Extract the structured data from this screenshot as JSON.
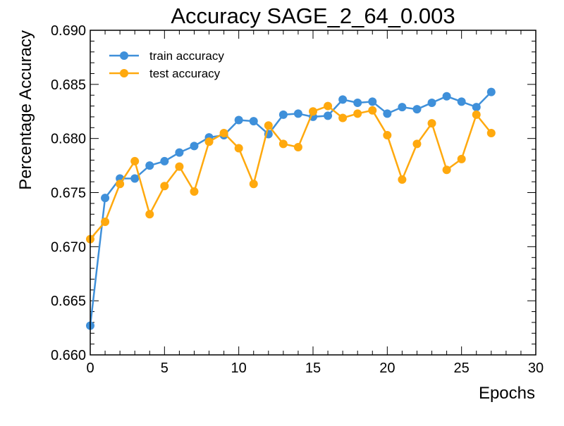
{
  "chart_data": {
    "type": "line",
    "title": "Accuracy SAGE_2_64_0.003",
    "xlabel": "Epochs",
    "ylabel": "Percentage Accuracy",
    "xlim": [
      0,
      30
    ],
    "ylim": [
      0.66,
      0.69
    ],
    "xticks": [
      0,
      5,
      10,
      15,
      20,
      25,
      30
    ],
    "xtick_labels": [
      "0",
      "5",
      "10",
      "15",
      "20",
      "25",
      "30"
    ],
    "yticks": [
      0.66,
      0.665,
      0.67,
      0.675,
      0.68,
      0.685,
      0.69
    ],
    "ytick_labels": [
      "0.660",
      "0.665",
      "0.670",
      "0.675",
      "0.680",
      "0.685",
      "0.690"
    ],
    "grid": false,
    "legend_position": "top-left",
    "x": [
      0,
      1,
      2,
      3,
      4,
      5,
      6,
      7,
      8,
      9,
      10,
      11,
      12,
      13,
      14,
      15,
      16,
      17,
      18,
      19,
      20,
      21,
      22,
      23,
      24,
      25,
      26,
      27
    ],
    "series": [
      {
        "name": "train accuracy",
        "color": "#3f90da",
        "values": [
          0.6627,
          0.6745,
          0.6763,
          0.6763,
          0.6775,
          0.6779,
          0.6787,
          0.6793,
          0.6801,
          0.6803,
          0.6817,
          0.6816,
          0.6804,
          0.6822,
          0.6823,
          0.682,
          0.6821,
          0.6836,
          0.6833,
          0.6834,
          0.6823,
          0.6829,
          0.6827,
          0.6833,
          0.6839,
          0.6834,
          0.6829,
          0.6843
        ]
      },
      {
        "name": "test accuracy",
        "color": "#ffa90e",
        "values": [
          0.6707,
          0.6723,
          0.6758,
          0.6779,
          0.673,
          0.6756,
          0.6774,
          0.6751,
          0.6797,
          0.6805,
          0.6791,
          0.6758,
          0.6812,
          0.6795,
          0.6792,
          0.6825,
          0.683,
          0.6819,
          0.6823,
          0.6826,
          0.6803,
          0.6762,
          0.6795,
          0.6814,
          0.6771,
          0.6781,
          0.6822,
          0.6805
        ]
      }
    ]
  }
}
